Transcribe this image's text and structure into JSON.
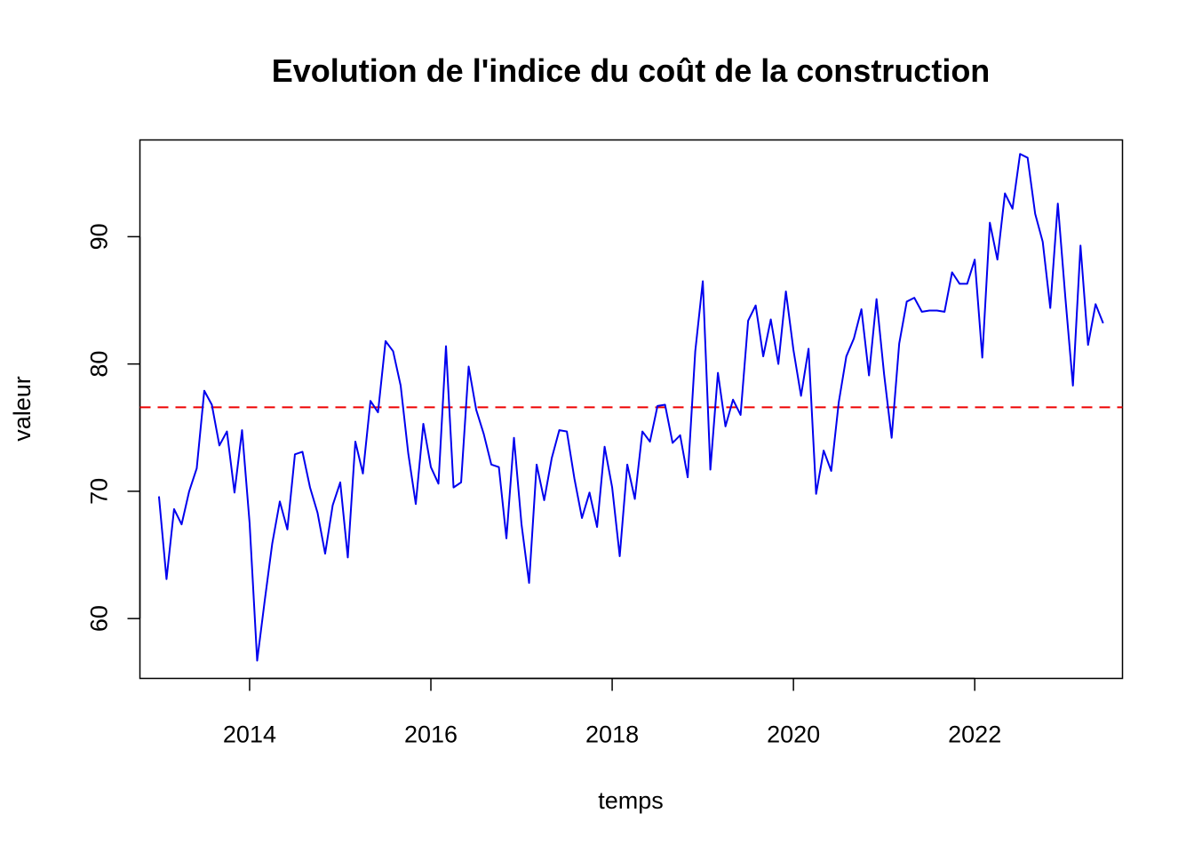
{
  "chart_data": {
    "type": "line",
    "title": "Evolution de l'indice du coût de la construction",
    "xlabel": "temps",
    "ylabel": "valeur",
    "xlim": [
      2012.79,
      2023.63
    ],
    "ylim": [
      55.3,
      97.6
    ],
    "x_ticks": [
      2014,
      2016,
      2018,
      2020,
      2022
    ],
    "y_ticks": [
      60,
      70,
      80,
      90
    ],
    "grid": false,
    "legend": "none",
    "x_start": 2013,
    "x_step_months": 1,
    "series": [
      {
        "color": "#0000ee",
        "values": [
          69.6,
          63.1,
          68.6,
          67.4,
          70.0,
          71.8,
          77.9,
          76.8,
          73.6,
          74.7,
          69.9,
          74.8,
          67.5,
          56.7,
          61.4,
          65.9,
          69.2,
          67.0,
          72.9,
          73.1,
          70.3,
          68.3,
          65.1,
          68.9,
          70.7,
          64.8,
          73.9,
          71.4,
          77.1,
          76.2,
          81.8,
          81.0,
          78.3,
          73.0,
          69.0,
          75.3,
          71.9,
          70.6,
          81.4,
          70.3,
          70.7,
          79.8,
          76.4,
          74.5,
          72.1,
          71.9,
          66.3,
          74.2,
          67.4,
          62.8,
          72.1,
          69.3,
          72.6,
          74.8,
          74.7,
          71.0,
          67.9,
          69.9,
          67.2,
          73.5,
          70.3,
          64.9,
          72.1,
          69.4,
          74.7,
          73.9,
          76.7,
          76.8,
          73.8,
          74.4,
          71.1,
          81.0,
          86.5,
          71.7,
          79.3,
          75.1,
          77.2,
          76.0,
          83.4,
          84.6,
          80.6,
          83.5,
          80.0,
          85.7,
          81.1,
          77.5,
          81.2,
          69.8,
          73.2,
          71.6,
          77.0,
          80.6,
          82.0,
          84.3,
          79.1,
          85.1,
          79.2,
          74.2,
          81.6,
          84.9,
          85.2,
          84.1,
          84.2,
          84.2,
          84.1,
          87.2,
          86.3,
          86.3,
          88.2,
          80.5,
          91.1,
          88.2,
          93.4,
          92.2,
          96.5,
          96.2,
          91.8,
          89.6,
          84.4,
          92.6,
          85.2,
          78.3,
          89.3,
          81.5,
          84.7,
          83.2
        ]
      }
    ],
    "reference_line": {
      "y": 76.6,
      "color": "#ee0000",
      "style": "dashed"
    }
  }
}
